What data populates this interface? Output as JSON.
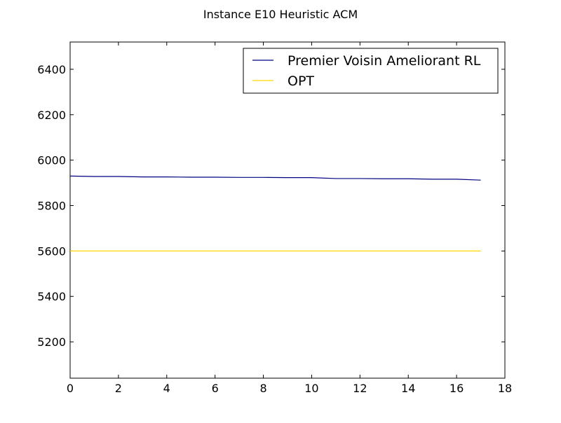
{
  "chart_data": {
    "type": "line",
    "title": "Instance E10 Heuristic ACM",
    "xlabel": "",
    "ylabel": "",
    "xlim": [
      0,
      18
    ],
    "ylim": [
      5040,
      6520
    ],
    "xticks": [
      0,
      2,
      4,
      6,
      8,
      10,
      12,
      14,
      16,
      18
    ],
    "yticks": [
      5200,
      5400,
      5600,
      5800,
      6000,
      6200,
      6400
    ],
    "grid": false,
    "legend_position": "top-right",
    "series": [
      {
        "name": "Premier Voisin Ameliorant RL",
        "color": "#000080",
        "x": [
          0,
          1,
          2,
          3,
          4,
          5,
          6,
          7,
          8,
          9,
          10,
          11,
          12,
          13,
          14,
          15,
          16,
          17
        ],
        "y": [
          5930,
          5928,
          5928,
          5926,
          5926,
          5925,
          5925,
          5924,
          5924,
          5923,
          5923,
          5919,
          5919,
          5918,
          5918,
          5916,
          5916,
          5912
        ]
      },
      {
        "name": "OPT",
        "color": "#FFD700",
        "x": [
          0,
          17
        ],
        "y": [
          5600,
          5600
        ]
      }
    ]
  }
}
